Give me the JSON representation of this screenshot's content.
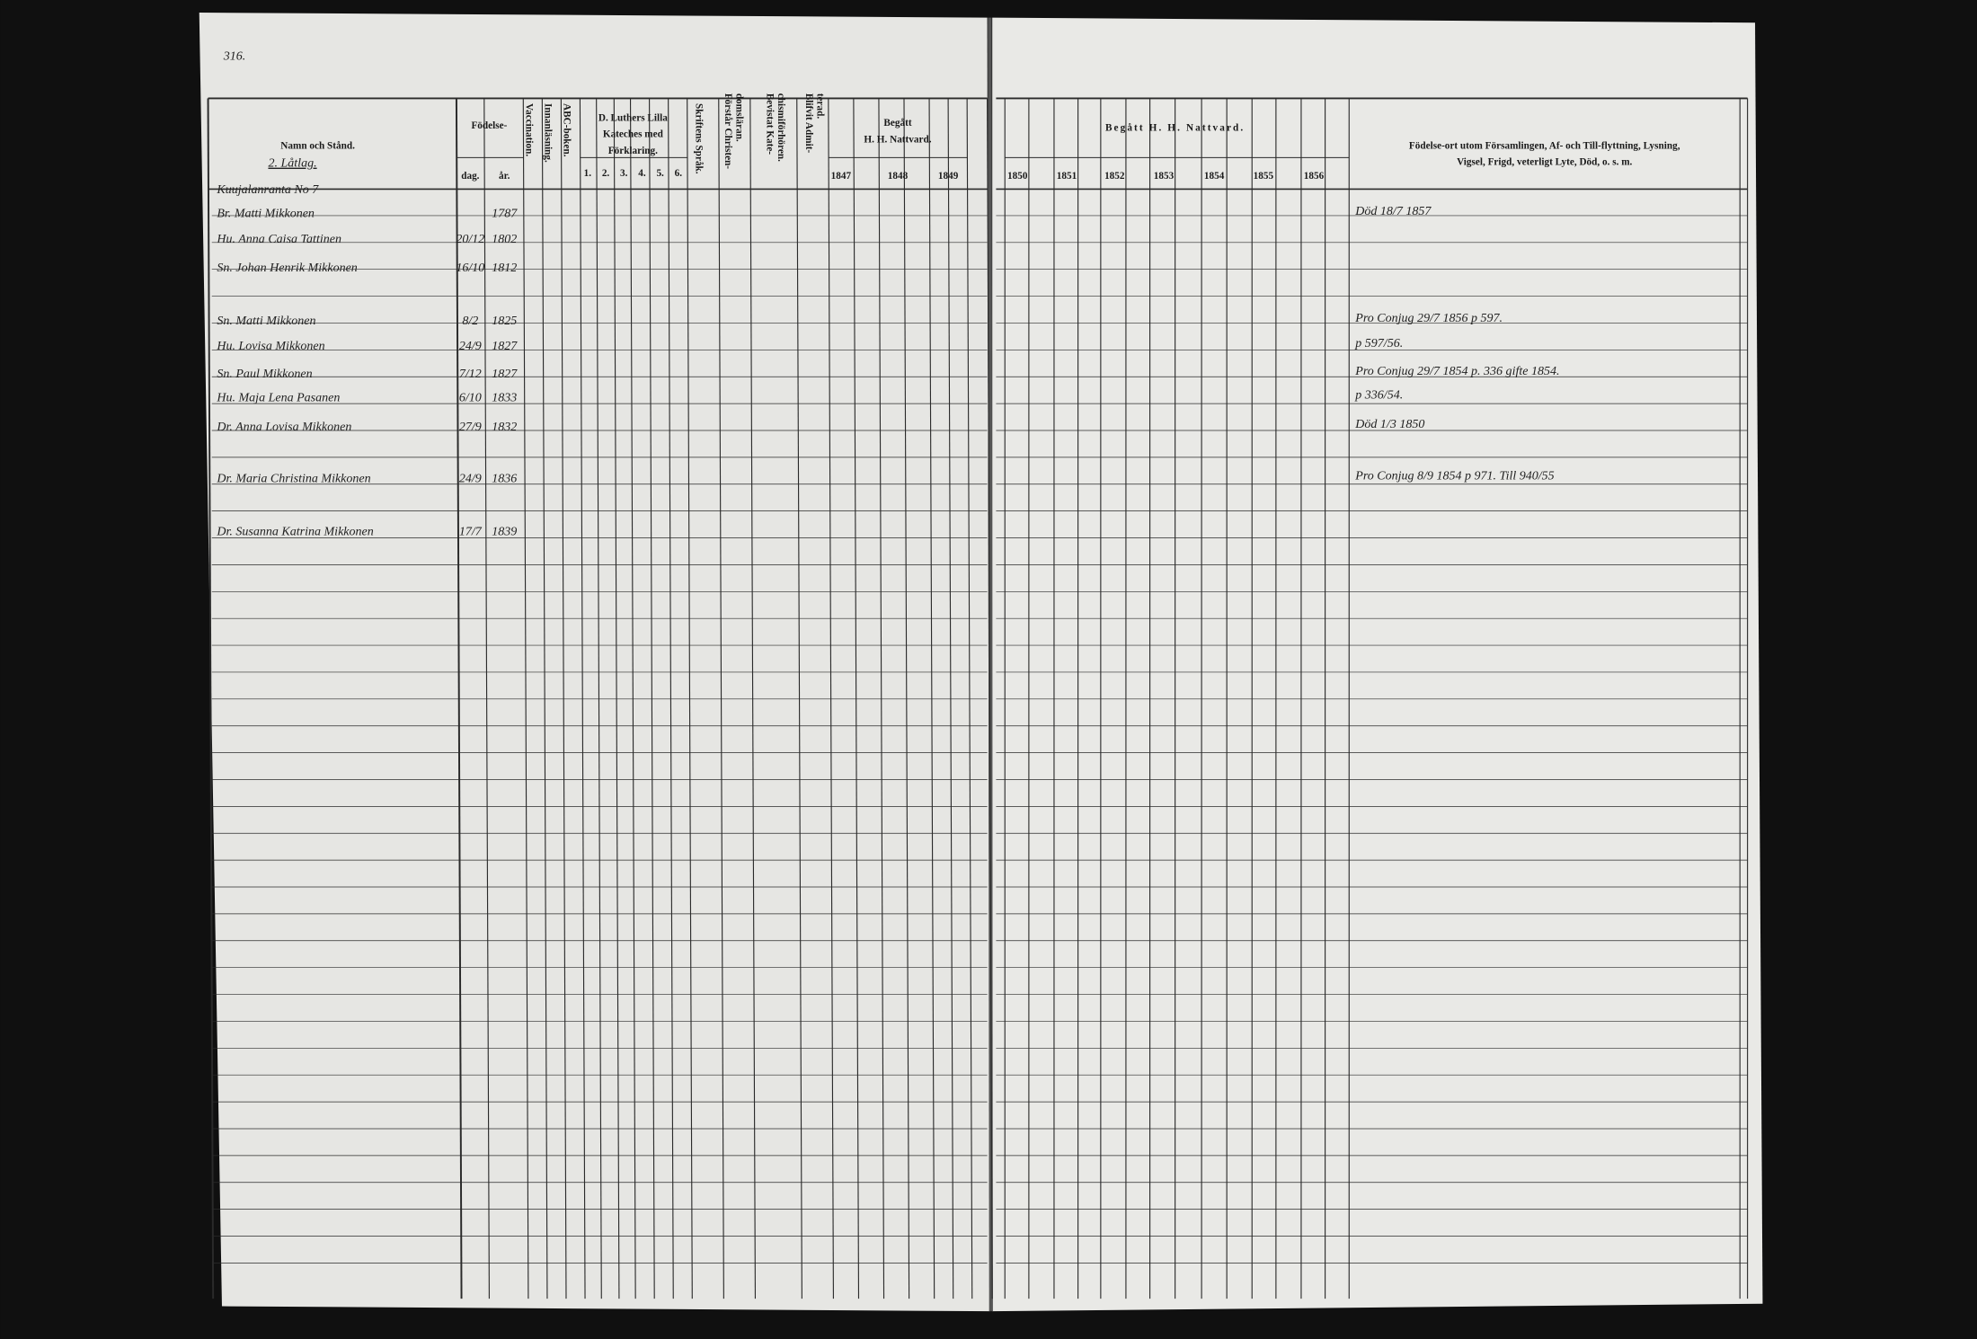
{
  "page_number": "316.",
  "left_page": {
    "headers": {
      "name": "Namn och Stånd.",
      "birth": "Födelse-",
      "day": "dag.",
      "year": "år.",
      "vaccination": "Vaccination.",
      "reading": "Innanläsning.",
      "abc": "ABC-boken.",
      "catechism": [
        "D. Luthers Lilla",
        "Kateches med",
        "Förklaring."
      ],
      "catechism_parts": [
        "1.",
        "2.",
        "3.",
        "4.",
        "5.",
        "6."
      ],
      "scripture": "Skriftens Språk.",
      "understands": [
        "Förstår Christen-",
        "domsläran."
      ],
      "attended": [
        "Bevistat Kate-",
        "chismiförhören."
      ],
      "admitted": [
        "Blifvit Admit-",
        "terad."
      ],
      "communion": [
        "Begått",
        "H. H. Nattvard."
      ],
      "communion_years": [
        "1847",
        "1848",
        "1849"
      ]
    },
    "household": {
      "group": "2. Låtlag.",
      "farm": "Kuujalanranta No 7",
      "rows": [
        {
          "name": "Br. Matti Mikkonen",
          "year": "1787",
          "note": "Död 18/7 1857"
        },
        {
          "name": "Hu. Anna Caisa Tattinen",
          "day": "20/12",
          "year": "1802"
        },
        {
          "name": "Sn. Johan Henrik Mikkonen",
          "day": "16/10",
          "year": "1812"
        },
        {
          "name": "Sn. Matti Mikkonen",
          "day": "8/2",
          "year": "1825",
          "note": "Pro Conjug 29/7 1856 p 597."
        },
        {
          "name": "Hu. Lovisa Mikkonen",
          "day": "24/9",
          "year": "1827",
          "note": "p 597/56."
        },
        {
          "name": "Sn. Paul Mikkonen",
          "day": "7/12",
          "year": "1827",
          "note": "Pro Conjug 29/7 1854 p. 336 gifte 1854."
        },
        {
          "name": "Hu. Maja Lena Pasanen",
          "day": "6/10",
          "year": "1833",
          "note": "p 336/54."
        },
        {
          "name": "Dr. Anna Lovisa Mikkonen",
          "day": "27/9",
          "year": "1832",
          "note": "Död 1/3 1850"
        },
        {
          "name": "Dr. Maria Christina Mikkonen",
          "day": "24/9",
          "year": "1836",
          "note": "Pro Conjug 8/9 1854 p 971. Till 940/55"
        },
        {
          "name": "Dr. Susanna Katrina Mikkonen",
          "day": "17/7",
          "year": "1839"
        }
      ]
    }
  },
  "right_page": {
    "headers": {
      "communion": "Begått H. H. Nattvard.",
      "communion_years": [
        "1850",
        "1851",
        "1852",
        "1853",
        "1854",
        "1855",
        "1856"
      ],
      "remarks": [
        "Födelse-ort utom Församlingen, Af- och Till-flyttning, Lysning,",
        "Vigsel, Frigd, veterligt Lyte, Död, o. s. m."
      ]
    }
  }
}
